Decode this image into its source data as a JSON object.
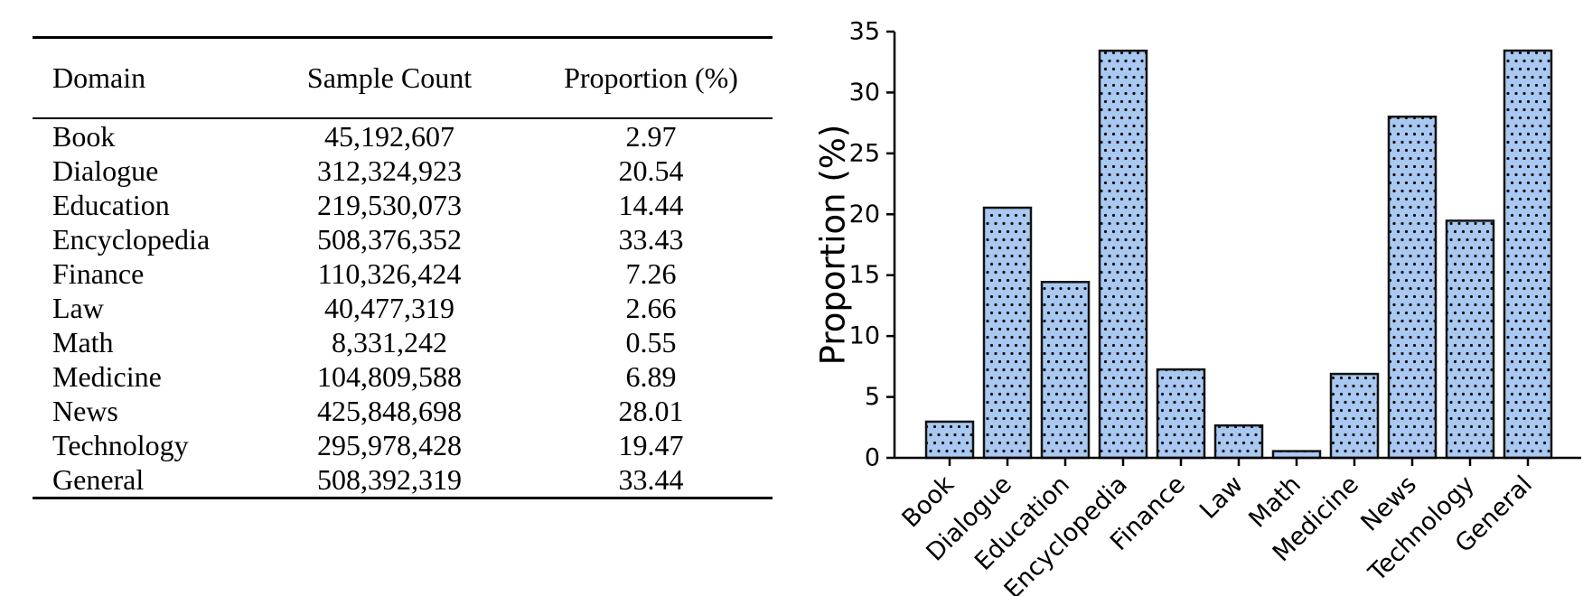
{
  "table": {
    "columns": [
      "Domain",
      "Sample Count",
      "Proportion (%)"
    ],
    "rows": [
      [
        "Book",
        "45,192,607",
        "2.97"
      ],
      [
        "Dialogue",
        "312,324,923",
        "20.54"
      ],
      [
        "Education",
        "219,530,073",
        "14.44"
      ],
      [
        "Encyclopedia",
        "508,376,352",
        "33.43"
      ],
      [
        "Finance",
        "110,326,424",
        "7.26"
      ],
      [
        "Law",
        "40,477,319",
        "2.66"
      ],
      [
        "Math",
        "8,331,242",
        "0.55"
      ],
      [
        "Medicine",
        "104,809,588",
        "6.89"
      ],
      [
        "News",
        "425,848,698",
        "28.01"
      ],
      [
        "Technology",
        "295,978,428",
        "19.47"
      ],
      [
        "General",
        "508,392,319",
        "33.44"
      ]
    ]
  },
  "chart_data": {
    "type": "bar",
    "title": "",
    "categories": [
      "Book",
      "Dialogue",
      "Education",
      "Encyclopedia",
      "Finance",
      "Law",
      "Math",
      "Medicine",
      "News",
      "Technology",
      "General"
    ],
    "values": [
      2.97,
      20.54,
      14.44,
      33.43,
      7.26,
      2.66,
      0.55,
      6.89,
      28.01,
      19.47,
      33.44
    ],
    "xlabel": "",
    "ylabel": "Proportion (%)",
    "ylim": [
      0,
      35
    ],
    "yticks": [
      0,
      5,
      10,
      15,
      20,
      25,
      30,
      35
    ],
    "x_tick_rotation": 45,
    "grid": false,
    "legend": "none",
    "bar_style": {
      "fill": "#a9c9f2",
      "edge": "#131313",
      "hatch": "dots",
      "hatch_color": "#111111"
    }
  }
}
